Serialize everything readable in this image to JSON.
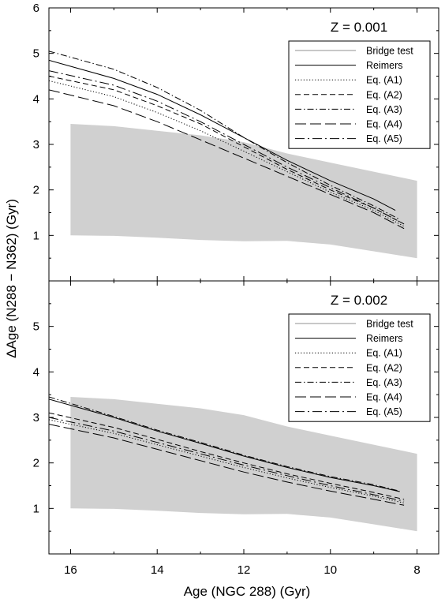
{
  "chart_data": {
    "type": "line",
    "xlabel": "Age (NGC 288) (Gyr)",
    "ylabel": "ΔAge (N288 − N362) (Gyr)",
    "x_axis": {
      "range": [
        16.5,
        7.5
      ],
      "reversed": true,
      "ticks": [
        16,
        14,
        12,
        10,
        8
      ]
    },
    "legend_placement": "right",
    "panels": [
      {
        "label": "Z = 0.001",
        "ylim": [
          0,
          6
        ],
        "y_ticks": [
          1,
          2,
          3,
          4,
          5,
          6
        ],
        "band": {
          "name": "Bridge test",
          "x": [
            16,
            15,
            14,
            13,
            12,
            11,
            10,
            9,
            8
          ],
          "upper": [
            3.45,
            3.4,
            3.3,
            3.2,
            3.05,
            2.8,
            2.6,
            2.4,
            2.2
          ],
          "lower": [
            1.0,
            0.99,
            0.95,
            0.9,
            0.87,
            0.88,
            0.8,
            0.65,
            0.5
          ]
        },
        "series": [
          {
            "name": "Reimers",
            "style": "solid",
            "x": [
              16.5,
              15,
              14,
              13,
              12,
              11,
              10,
              9,
              8.5
            ],
            "y": [
              4.85,
              4.45,
              4.1,
              3.65,
              3.15,
              2.65,
              2.2,
              1.8,
              1.55
            ]
          },
          {
            "name": "Eq. (A1)",
            "style": "dotted",
            "x": [
              16.5,
              15,
              14,
              13,
              12,
              11,
              10,
              9,
              8.3
            ],
            "y": [
              4.4,
              4.05,
              3.7,
              3.3,
              2.85,
              2.4,
              1.95,
              1.55,
              1.2
            ]
          },
          {
            "name": "Eq. (A2)",
            "style": "dashed",
            "x": [
              16.5,
              15,
              14,
              13,
              12,
              11,
              10,
              9,
              8.3
            ],
            "y": [
              4.5,
              4.2,
              3.85,
              3.45,
              2.95,
              2.45,
              2.0,
              1.6,
              1.25
            ]
          },
          {
            "name": "Eq. (A3)",
            "style": "dashdot",
            "x": [
              16.5,
              15,
              14,
              13,
              12,
              11,
              10,
              9,
              8.4
            ],
            "y": [
              5.05,
              4.65,
              4.25,
              3.75,
              3.15,
              2.6,
              2.1,
              1.65,
              1.35
            ]
          },
          {
            "name": "Eq. (A4)",
            "style": "longdash",
            "x": [
              16.5,
              15,
              14,
              13,
              12,
              11,
              10,
              9,
              8.3
            ],
            "y": [
              4.2,
              3.85,
              3.5,
              3.1,
              2.7,
              2.3,
              1.9,
              1.5,
              1.15
            ]
          },
          {
            "name": "Eq. (A5)",
            "style": "longdashdot",
            "x": [
              16.5,
              15,
              14,
              13,
              12,
              11,
              10,
              9,
              8.4
            ],
            "y": [
              4.62,
              4.3,
              3.95,
              3.5,
              3.0,
              2.5,
              2.05,
              1.6,
              1.3
            ]
          }
        ]
      },
      {
        "label": "Z = 0.002",
        "ylim": [
          0,
          6
        ],
        "y_ticks": [
          1,
          2,
          3,
          4,
          5
        ],
        "band": {
          "name": "Bridge test",
          "x": [
            16,
            15,
            14,
            13,
            12,
            11,
            10,
            9,
            8
          ],
          "upper": [
            3.45,
            3.4,
            3.3,
            3.2,
            3.05,
            2.8,
            2.6,
            2.4,
            2.2
          ],
          "lower": [
            1.0,
            0.99,
            0.95,
            0.9,
            0.87,
            0.88,
            0.8,
            0.65,
            0.5
          ]
        },
        "series": [
          {
            "name": "Reimers",
            "style": "solid",
            "x": [
              16.5,
              15,
              14,
              13,
              12,
              11,
              10,
              9,
              8.4
            ],
            "y": [
              3.4,
              3.0,
              2.7,
              2.43,
              2.15,
              1.9,
              1.68,
              1.5,
              1.37
            ]
          },
          {
            "name": "Eq. (A1)",
            "style": "dotted",
            "x": [
              16.5,
              15,
              14,
              13,
              12,
              11,
              10,
              9,
              8.3
            ],
            "y": [
              2.95,
              2.65,
              2.4,
              2.15,
              1.9,
              1.67,
              1.46,
              1.27,
              1.12
            ]
          },
          {
            "name": "Eq. (A2)",
            "style": "dashed",
            "x": [
              16.5,
              15,
              14,
              13,
              12,
              11,
              10,
              9,
              8.3
            ],
            "y": [
              3.1,
              2.78,
              2.52,
              2.25,
              2.0,
              1.76,
              1.55,
              1.35,
              1.2
            ]
          },
          {
            "name": "Eq. (A3)",
            "style": "dashdot",
            "x": [
              16.5,
              15,
              14,
              13,
              12,
              11,
              10,
              9,
              8.4
            ],
            "y": [
              3.45,
              3.02,
              2.72,
              2.45,
              2.17,
              1.92,
              1.7,
              1.52,
              1.38
            ]
          },
          {
            "name": "Eq. (A4)",
            "style": "longdash",
            "x": [
              16.5,
              15,
              14,
              13,
              12,
              11,
              10,
              9,
              8.3
            ],
            "y": [
              2.85,
              2.55,
              2.3,
              2.05,
              1.8,
              1.58,
              1.38,
              1.2,
              1.07
            ]
          },
          {
            "name": "Eq. (A5)",
            "style": "longdashdot",
            "x": [
              16.5,
              15,
              14,
              13,
              12,
              11,
              10,
              9,
              8.3
            ],
            "y": [
              3.0,
              2.7,
              2.45,
              2.2,
              1.95,
              1.72,
              1.5,
              1.3,
              1.16
            ]
          }
        ]
      }
    ]
  }
}
